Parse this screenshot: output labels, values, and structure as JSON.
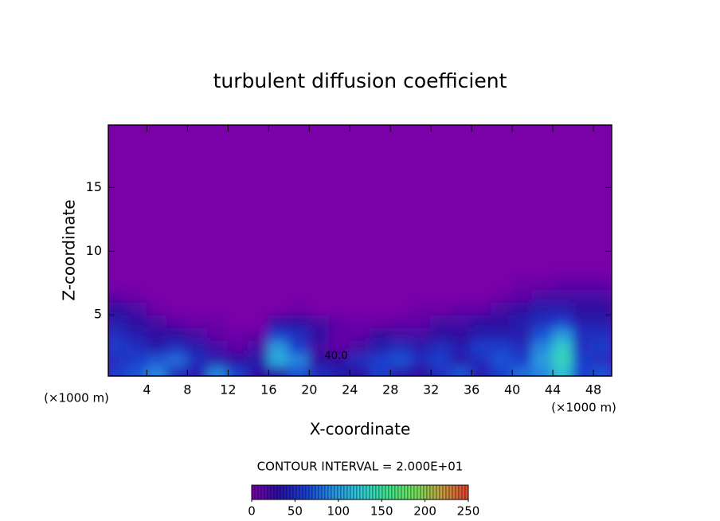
{
  "chart_data": {
    "type": "heatmap",
    "title": "turbulent diffusion coefficient",
    "xlabel": "X-coordinate",
    "ylabel": "Z-coordinate",
    "x_unit": "(×1000 m)",
    "y_unit": "(×1000 m)",
    "xlim": [
      0.2,
      49.8
    ],
    "ylim": [
      0.2,
      19.9
    ],
    "xticks": [
      4,
      8,
      12,
      16,
      20,
      24,
      28,
      32,
      36,
      40,
      44,
      48
    ],
    "yticks": [
      5,
      10,
      15
    ],
    "x": [
      1,
      3,
      5,
      7,
      9,
      11,
      13,
      15,
      17,
      19,
      21,
      23,
      25,
      27,
      29,
      31,
      33,
      35,
      37,
      39,
      41,
      43,
      45,
      47,
      49
    ],
    "y": [
      0.5,
      1.5,
      2.5,
      3.5,
      4.5,
      5.5,
      6.5,
      7.5
    ],
    "z": [
      [
        60,
        70,
        90,
        50,
        40,
        90,
        60,
        30,
        40,
        70,
        50,
        40,
        30,
        60,
        40,
        30,
        50,
        70,
        40,
        60,
        80,
        90,
        120,
        60,
        70
      ],
      [
        50,
        60,
        70,
        80,
        50,
        40,
        30,
        40,
        110,
        90,
        30,
        30,
        50,
        60,
        70,
        50,
        60,
        40,
        50,
        70,
        60,
        100,
        140,
        60,
        50
      ],
      [
        60,
        50,
        40,
        50,
        40,
        20,
        10,
        20,
        100,
        60,
        20,
        10,
        20,
        40,
        50,
        40,
        50,
        40,
        60,
        60,
        50,
        90,
        130,
        50,
        60
      ],
      [
        50,
        40,
        30,
        30,
        20,
        10,
        5,
        10,
        60,
        50,
        30,
        10,
        10,
        30,
        20,
        20,
        30,
        30,
        40,
        40,
        40,
        70,
        100,
        50,
        50
      ],
      [
        40,
        30,
        20,
        10,
        5,
        5,
        0,
        0,
        30,
        30,
        20,
        10,
        5,
        5,
        10,
        10,
        20,
        20,
        30,
        30,
        40,
        50,
        60,
        40,
        40
      ],
      [
        30,
        20,
        5,
        0,
        0,
        0,
        0,
        0,
        0,
        5,
        0,
        0,
        0,
        0,
        0,
        5,
        5,
        10,
        10,
        20,
        30,
        40,
        40,
        30,
        30
      ],
      [
        10,
        5,
        0,
        0,
        0,
        0,
        0,
        0,
        0,
        0,
        0,
        0,
        0,
        0,
        0,
        0,
        0,
        0,
        0,
        5,
        10,
        20,
        20,
        20,
        20
      ],
      [
        0,
        0,
        0,
        0,
        0,
        0,
        0,
        0,
        0,
        0,
        0,
        0,
        0,
        0,
        0,
        0,
        0,
        0,
        0,
        0,
        5,
        5,
        10,
        10,
        10
      ]
    ],
    "contour_label": "40.0",
    "contour_interval_text": "CONTOUR INTERVAL = 2.000E+01",
    "colorbar": {
      "lim": [
        0,
        250
      ],
      "ticks": [
        0,
        50,
        100,
        150,
        200,
        250
      ]
    },
    "colorscale": [
      "#7a00a8",
      "#2a10a0",
      "#1a40d0",
      "#2890e0",
      "#30c8d8",
      "#40e090",
      "#70e060",
      "#c0a040",
      "#e04030"
    ]
  }
}
